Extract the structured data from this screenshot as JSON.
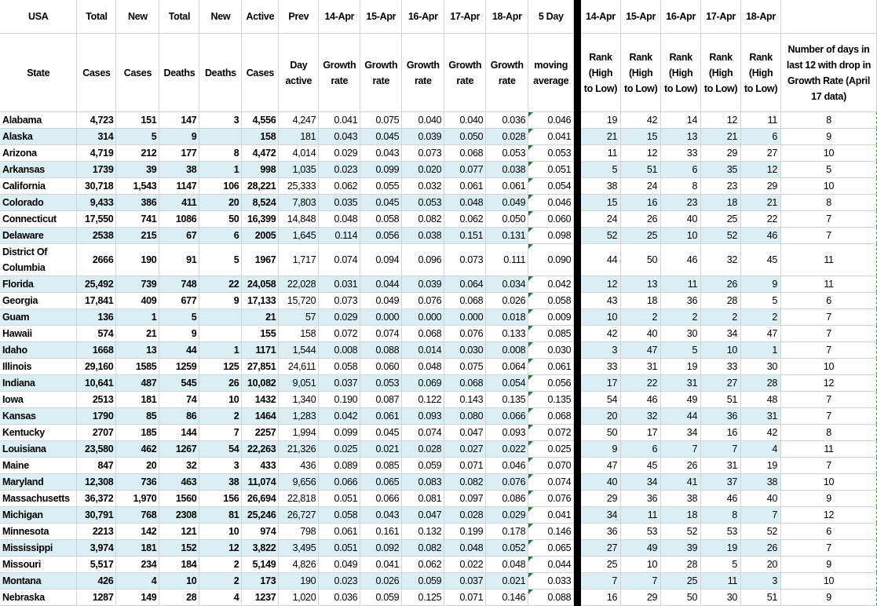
{
  "header_row1": [
    "USA",
    "Total",
    "New",
    "Total",
    "New",
    "Active",
    "Prev",
    "14-Apr",
    "15-Apr",
    "16-Apr",
    "17-Apr",
    "18-Apr",
    "5 Day",
    "14-Apr",
    "15-Apr",
    "16-Apr",
    "17-Apr",
    "18-Apr",
    ""
  ],
  "header_row2": [
    "State",
    "Cases",
    "Cases",
    "Deaths",
    "Deaths",
    "Cases",
    "Day active",
    "Growth rate",
    "Growth rate",
    "Growth rate",
    "Growth rate",
    "Growth rate",
    "moving average",
    "Rank (High to Low)",
    "Rank (High to Low)",
    "Rank (High to Low)",
    "Rank (High to Low)",
    "Rank (High to Low)",
    "Number of days in last 12 with drop in Growth Rate (April 17 data)"
  ],
  "colors": {
    "stripe": "#daeef3",
    "divider": "#000000",
    "marker": "#1e7b34"
  },
  "rows": [
    [
      "Alabama",
      "4,723",
      "151",
      "147",
      "3",
      "4,556",
      "4,247",
      "0.041",
      "0.075",
      "0.040",
      "0.040",
      "0.036",
      "0.046",
      "19",
      "42",
      "14",
      "12",
      "11",
      "8"
    ],
    [
      "Alaska",
      "314",
      "5",
      "9",
      "",
      "158",
      "181",
      "0.043",
      "0.045",
      "0.039",
      "0.050",
      "0.028",
      "0.041",
      "21",
      "15",
      "13",
      "21",
      "6",
      "9"
    ],
    [
      "Arizona",
      "4,719",
      "212",
      "177",
      "8",
      "4,472",
      "4,014",
      "0.029",
      "0.043",
      "0.073",
      "0.068",
      "0.053",
      "0.053",
      "11",
      "12",
      "33",
      "29",
      "27",
      "10"
    ],
    [
      "Arkansas",
      "1739",
      "39",
      "38",
      "1",
      "998",
      "1,035",
      "0.023",
      "0.099",
      "0.020",
      "0.077",
      "0.038",
      "0.051",
      "5",
      "51",
      "6",
      "35",
      "12",
      "5"
    ],
    [
      "California",
      "30,718",
      "1,543",
      "1147",
      "106",
      "28,221",
      "25,333",
      "0.062",
      "0.055",
      "0.032",
      "0.061",
      "0.061",
      "0.054",
      "38",
      "24",
      "8",
      "23",
      "29",
      "10"
    ],
    [
      "Colorado",
      "9,433",
      "386",
      "411",
      "20",
      "8,524",
      "7,803",
      "0.035",
      "0.045",
      "0.053",
      "0.048",
      "0.049",
      "0.046",
      "15",
      "16",
      "23",
      "18",
      "21",
      "8"
    ],
    [
      "Connecticut",
      "17,550",
      "741",
      "1086",
      "50",
      "16,399",
      "14,848",
      "0.048",
      "0.058",
      "0.082",
      "0.062",
      "0.050",
      "0.060",
      "24",
      "26",
      "40",
      "25",
      "22",
      "7"
    ],
    [
      "Delaware",
      "2538",
      "215",
      "67",
      "6",
      "2005",
      "1,645",
      "0.114",
      "0.056",
      "0.038",
      "0.151",
      "0.131",
      "0.098",
      "52",
      "25",
      "10",
      "52",
      "46",
      "7"
    ],
    [
      "District Of Columbia",
      "2666",
      "190",
      "91",
      "5",
      "1967",
      "1,717",
      "0.074",
      "0.094",
      "0.096",
      "0.073",
      "0.111",
      "0.090",
      "44",
      "50",
      "46",
      "32",
      "45",
      "11"
    ],
    [
      "Florida",
      "25,492",
      "739",
      "748",
      "22",
      "24,058",
      "22,028",
      "0.031",
      "0.044",
      "0.039",
      "0.064",
      "0.034",
      "0.042",
      "12",
      "13",
      "11",
      "26",
      "9",
      "11"
    ],
    [
      "Georgia",
      "17,841",
      "409",
      "677",
      "9",
      "17,133",
      "15,720",
      "0.073",
      "0.049",
      "0.076",
      "0.068",
      "0.026",
      "0.058",
      "43",
      "18",
      "36",
      "28",
      "5",
      "6"
    ],
    [
      "Guam",
      "136",
      "1",
      "5",
      "",
      "21",
      "57",
      "0.029",
      "0.000",
      "0.000",
      "0.000",
      "0.018",
      "0.009",
      "10",
      "2",
      "2",
      "2",
      "2",
      "7"
    ],
    [
      "Hawaii",
      "574",
      "21",
      "9",
      "",
      "155",
      "158",
      "0.072",
      "0.074",
      "0.068",
      "0.076",
      "0.133",
      "0.085",
      "42",
      "40",
      "30",
      "34",
      "47",
      "7"
    ],
    [
      "Idaho",
      "1668",
      "13",
      "44",
      "1",
      "1171",
      "1,544",
      "0.008",
      "0.088",
      "0.014",
      "0.030",
      "0.008",
      "0.030",
      "3",
      "47",
      "5",
      "10",
      "1",
      "7"
    ],
    [
      "Illinois",
      "29,160",
      "1585",
      "1259",
      "125",
      "27,851",
      "24,611",
      "0.058",
      "0.060",
      "0.048",
      "0.075",
      "0.064",
      "0.061",
      "33",
      "31",
      "19",
      "33",
      "30",
      "10"
    ],
    [
      "Indiana",
      "10,641",
      "487",
      "545",
      "26",
      "10,082",
      "9,051",
      "0.037",
      "0.053",
      "0.069",
      "0.068",
      "0.054",
      "0.056",
      "17",
      "22",
      "31",
      "27",
      "28",
      "12"
    ],
    [
      "Iowa",
      "2513",
      "181",
      "74",
      "10",
      "1432",
      "1,340",
      "0.190",
      "0.087",
      "0.122",
      "0.143",
      "0.135",
      "0.135",
      "54",
      "46",
      "49",
      "51",
      "48",
      "7"
    ],
    [
      "Kansas",
      "1790",
      "85",
      "86",
      "2",
      "1464",
      "1,283",
      "0.042",
      "0.061",
      "0.093",
      "0.080",
      "0.066",
      "0.068",
      "20",
      "32",
      "44",
      "36",
      "31",
      "7"
    ],
    [
      "Kentucky",
      "2707",
      "185",
      "144",
      "7",
      "2257",
      "1,994",
      "0.099",
      "0.045",
      "0.074",
      "0.047",
      "0.093",
      "0.072",
      "50",
      "17",
      "34",
      "16",
      "42",
      "8"
    ],
    [
      "Louisiana",
      "23,580",
      "462",
      "1267",
      "54",
      "22,263",
      "21,326",
      "0.025",
      "0.021",
      "0.028",
      "0.027",
      "0.022",
      "0.025",
      "9",
      "6",
      "7",
      "7",
      "4",
      "11"
    ],
    [
      "Maine",
      "847",
      "20",
      "32",
      "3",
      "433",
      "436",
      "0.089",
      "0.085",
      "0.059",
      "0.071",
      "0.046",
      "0.070",
      "47",
      "45",
      "26",
      "31",
      "19",
      "7"
    ],
    [
      "Maryland",
      "12,308",
      "736",
      "463",
      "38",
      "11,074",
      "9,656",
      "0.066",
      "0.065",
      "0.083",
      "0.082",
      "0.076",
      "0.074",
      "40",
      "34",
      "41",
      "37",
      "38",
      "10"
    ],
    [
      "Massachusetts",
      "36,372",
      "1,970",
      "1560",
      "156",
      "26,694",
      "22,818",
      "0.051",
      "0.066",
      "0.081",
      "0.097",
      "0.086",
      "0.076",
      "29",
      "36",
      "38",
      "46",
      "40",
      "9"
    ],
    [
      "Michigan",
      "30,791",
      "768",
      "2308",
      "81",
      "25,246",
      "26,727",
      "0.058",
      "0.043",
      "0.047",
      "0.028",
      "0.029",
      "0.041",
      "34",
      "11",
      "18",
      "8",
      "7",
      "12"
    ],
    [
      "Minnesota",
      "2213",
      "142",
      "121",
      "10",
      "974",
      "798",
      "0.061",
      "0.161",
      "0.132",
      "0.199",
      "0.178",
      "0.146",
      "36",
      "53",
      "52",
      "53",
      "52",
      "6"
    ],
    [
      "Mississippi",
      "3,974",
      "181",
      "152",
      "12",
      "3,822",
      "3,495",
      "0.051",
      "0.092",
      "0.082",
      "0.048",
      "0.052",
      "0.065",
      "27",
      "49",
      "39",
      "19",
      "26",
      "7"
    ],
    [
      "Missouri",
      "5,517",
      "234",
      "184",
      "2",
      "5,149",
      "4,826",
      "0.049",
      "0.041",
      "0.062",
      "0.022",
      "0.048",
      "0.044",
      "25",
      "10",
      "28",
      "5",
      "20",
      "9"
    ],
    [
      "Montana",
      "426",
      "4",
      "10",
      "2",
      "173",
      "190",
      "0.023",
      "0.026",
      "0.059",
      "0.037",
      "0.021",
      "0.033",
      "7",
      "7",
      "25",
      "11",
      "3",
      "10"
    ],
    [
      "Nebraska",
      "1287",
      "149",
      "28",
      "4",
      "1237",
      "1,020",
      "0.036",
      "0.059",
      "0.125",
      "0.071",
      "0.146",
      "0.088",
      "16",
      "29",
      "50",
      "30",
      "51",
      "9"
    ]
  ]
}
